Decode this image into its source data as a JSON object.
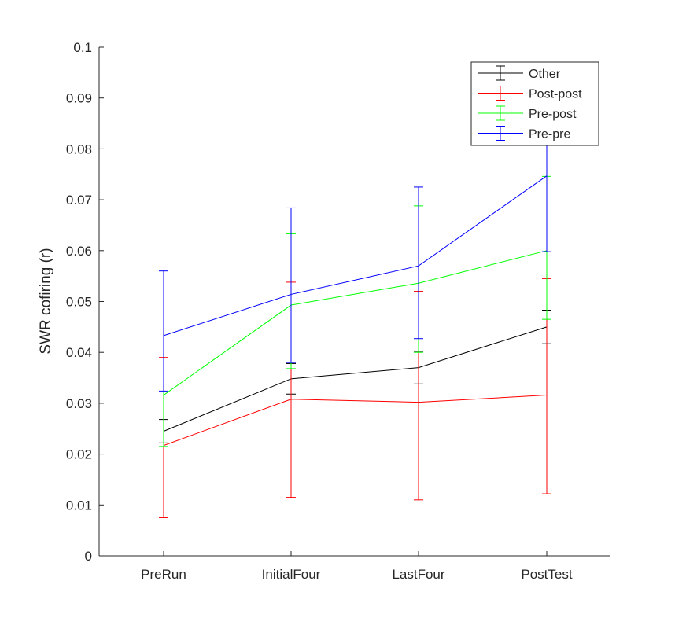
{
  "chart_data": {
    "type": "line",
    "ylabel": "SWR cofiring (r)",
    "xlabel": "",
    "title": "",
    "categories": [
      "PreRun",
      "InitialFour",
      "LastFour",
      "PostTest"
    ],
    "ylim": [
      0,
      0.1
    ],
    "yticks": [
      "0",
      "0.01",
      "0.02",
      "0.03",
      "0.04",
      "0.05",
      "0.06",
      "0.07",
      "0.08",
      "0.09",
      "0.1"
    ],
    "grid": false,
    "legend_position": "top-right",
    "series": [
      {
        "name": "Other",
        "color": "#000000",
        "values": [
          0.0245,
          0.0348,
          0.037,
          0.045
        ],
        "lower": [
          0.0222,
          0.0318,
          0.0338,
          0.0417
        ],
        "upper": [
          0.0268,
          0.0378,
          0.0402,
          0.0483
        ]
      },
      {
        "name": "Post-post",
        "color": "#ff0000",
        "values": [
          0.0217,
          0.0308,
          0.0302,
          0.0316
        ],
        "lower": [
          0.0075,
          0.0115,
          0.011,
          0.0122
        ],
        "upper": [
          0.039,
          0.0538,
          0.052,
          0.0545
        ]
      },
      {
        "name": "Pre-post",
        "color": "#00ff00",
        "values": [
          0.0316,
          0.0493,
          0.0536,
          0.06
        ],
        "lower": [
          0.0215,
          0.0368,
          0.04,
          0.0465
        ],
        "upper": [
          0.0432,
          0.0633,
          0.0688,
          0.0746
        ]
      },
      {
        "name": "Pre-pre",
        "color": "#0000ff",
        "values": [
          0.0433,
          0.0514,
          0.057,
          0.0747
        ],
        "lower": [
          0.0324,
          0.038,
          0.0427,
          0.0598
        ],
        "upper": [
          0.056,
          0.0684,
          0.0725,
          0.0895
        ]
      }
    ]
  }
}
